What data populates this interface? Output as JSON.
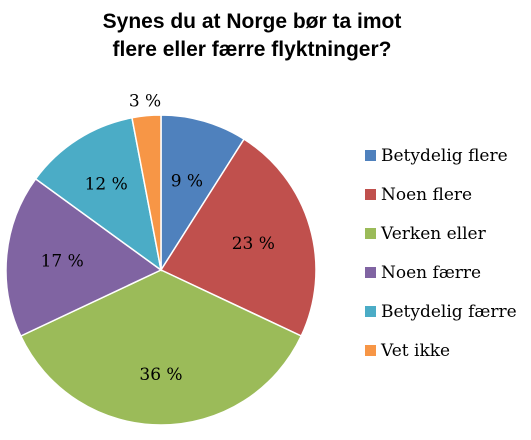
{
  "chart_data": {
    "type": "pie",
    "title_lines": [
      "Synes du at Norge bør ta imot",
      "flere eller færre flyktninger?"
    ],
    "categories": [
      "Betydelig flere",
      "Noen flere",
      "Verken eller",
      "Noen færre",
      "Betydelig færre",
      "Vet ikke"
    ],
    "values": [
      9,
      23,
      36,
      17,
      12,
      3
    ],
    "data_labels": [
      "9 %",
      "23 %",
      "36 %",
      "17 %",
      "12 %",
      "3 %"
    ],
    "colors": [
      "#4F81BD",
      "#C0504D",
      "#9BBB59",
      "#8064A2",
      "#4BACC6",
      "#F79646"
    ],
    "start_angle_deg": 0,
    "direction": "clockwise",
    "legend_position": "right"
  }
}
